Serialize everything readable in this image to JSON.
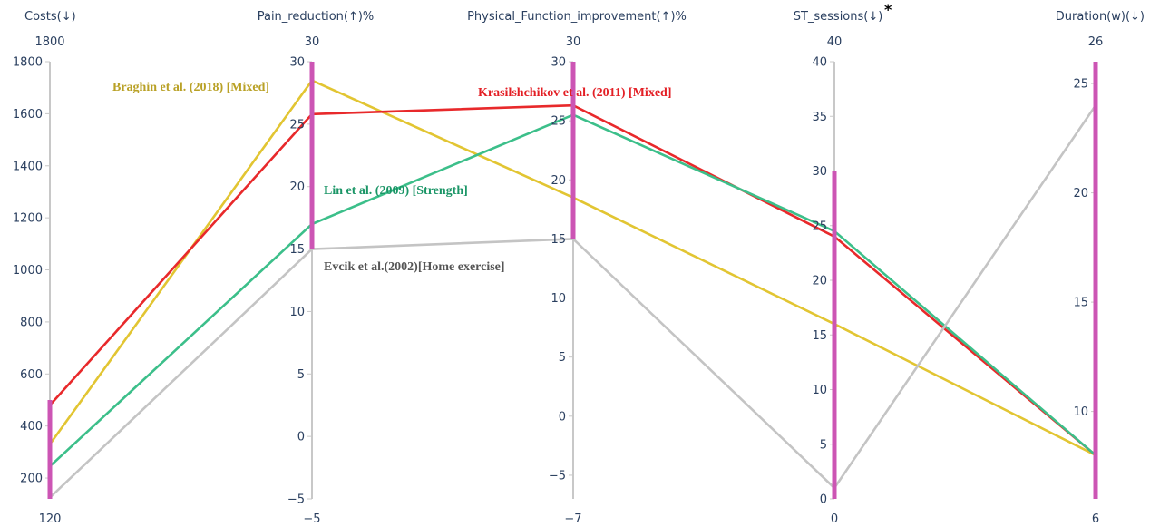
{
  "chart_data": {
    "type": "parallel_coordinates",
    "title": "",
    "dimensions": [
      {
        "name": "Costs(↓)",
        "range_top": "1800",
        "range_bottom": "120",
        "ticks": [
          200,
          400,
          600,
          800,
          1000,
          1200,
          1400,
          1600,
          1800
        ],
        "tick_labels": [
          "200",
          "400",
          "600",
          "800",
          "1000",
          "1200",
          "1400",
          "1600",
          "1800"
        ],
        "axis_min": 120,
        "axis_max": 1800,
        "constraint": [
          120,
          500
        ]
      },
      {
        "name": "Pain_reduction(↑)%",
        "range_top": "30",
        "range_bottom": "−5",
        "ticks": [
          -5,
          0,
          5,
          10,
          15,
          20,
          25,
          30
        ],
        "tick_labels": [
          "−5",
          "0",
          "5",
          "10",
          "15",
          "20",
          "25",
          "30"
        ],
        "axis_min": -5,
        "axis_max": 30,
        "constraint": [
          15,
          30
        ]
      },
      {
        "name": "Physical_Function_improvement(↑)%",
        "range_top": "30",
        "range_bottom": "−7",
        "ticks": [
          -5,
          0,
          5,
          10,
          15,
          20,
          25,
          30
        ],
        "tick_labels": [
          "−5",
          "0",
          "5",
          "10",
          "15",
          "20",
          "25",
          "30"
        ],
        "axis_min": -7,
        "axis_max": 30,
        "constraint": [
          15,
          30
        ]
      },
      {
        "name": "ST_sessions(↓)",
        "range_top": "40",
        "range_bottom": "0",
        "ticks": [
          0,
          5,
          10,
          15,
          20,
          25,
          30,
          35,
          40
        ],
        "tick_labels": [
          "0",
          "5",
          "10",
          "15",
          "20",
          "25",
          "30",
          "35",
          "40"
        ],
        "axis_min": 0,
        "axis_max": 40,
        "constraint": [
          0,
          30
        ],
        "mark": "*"
      },
      {
        "name": "Duration(w)(↓)",
        "range_top": "26",
        "range_bottom": "6",
        "ticks": [
          10,
          15,
          20,
          25
        ],
        "tick_labels": [
          "10",
          "15",
          "20",
          "25"
        ],
        "axis_min": 6,
        "axis_max": 26,
        "constraint": [
          6,
          26
        ]
      }
    ],
    "series": [
      {
        "name": "Braghin et al. (2018) [Mixed]",
        "color": "#e2c532",
        "values": [
          330,
          28.5,
          18.5,
          16,
          8
        ]
      },
      {
        "name": "Krasilshchikov et al. (2011) [Mixed]",
        "color": "#e8292b",
        "values": [
          480,
          25.8,
          26.3,
          24,
          8
        ]
      },
      {
        "name": "Lin et al. (2009) [Strength]",
        "color": "#3cbf8a",
        "values": [
          245,
          17,
          25.5,
          24.5,
          8
        ]
      },
      {
        "name": "Evcik et al.(2002)[Home exercise]",
        "color": "#c4c4c4",
        "values": [
          125,
          15,
          15,
          1,
          24
        ]
      }
    ]
  },
  "colors": {
    "axis": "#c8c8c8",
    "constraint_bar": "#cc55b4",
    "text": "#2a3f5f"
  }
}
